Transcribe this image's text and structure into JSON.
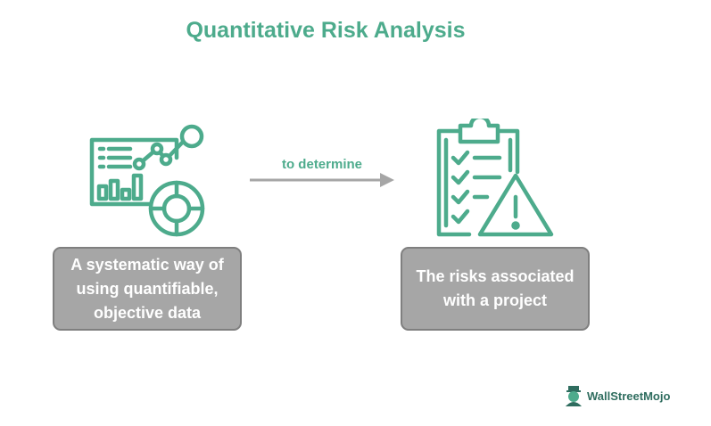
{
  "title": "Quantitative Risk Analysis",
  "arrow_label": "to determine",
  "left_box": {
    "line1": "A systematic way of",
    "line2": "using quantifiable,",
    "line3": "objective data"
  },
  "right_box": {
    "line1": "The risks associated",
    "line2": "with a project"
  },
  "logo": {
    "text": "WallStreetMojo"
  },
  "icons": {
    "left": "analytics-dashboard-icon",
    "right": "clipboard-warning-icon",
    "logo": "wallstreetmojo-logo"
  },
  "colors": {
    "accent": "#4dab8c",
    "box_fill": "#a6a6a6",
    "box_border": "#7f7f7f",
    "arrow": "#a6a6a6"
  }
}
